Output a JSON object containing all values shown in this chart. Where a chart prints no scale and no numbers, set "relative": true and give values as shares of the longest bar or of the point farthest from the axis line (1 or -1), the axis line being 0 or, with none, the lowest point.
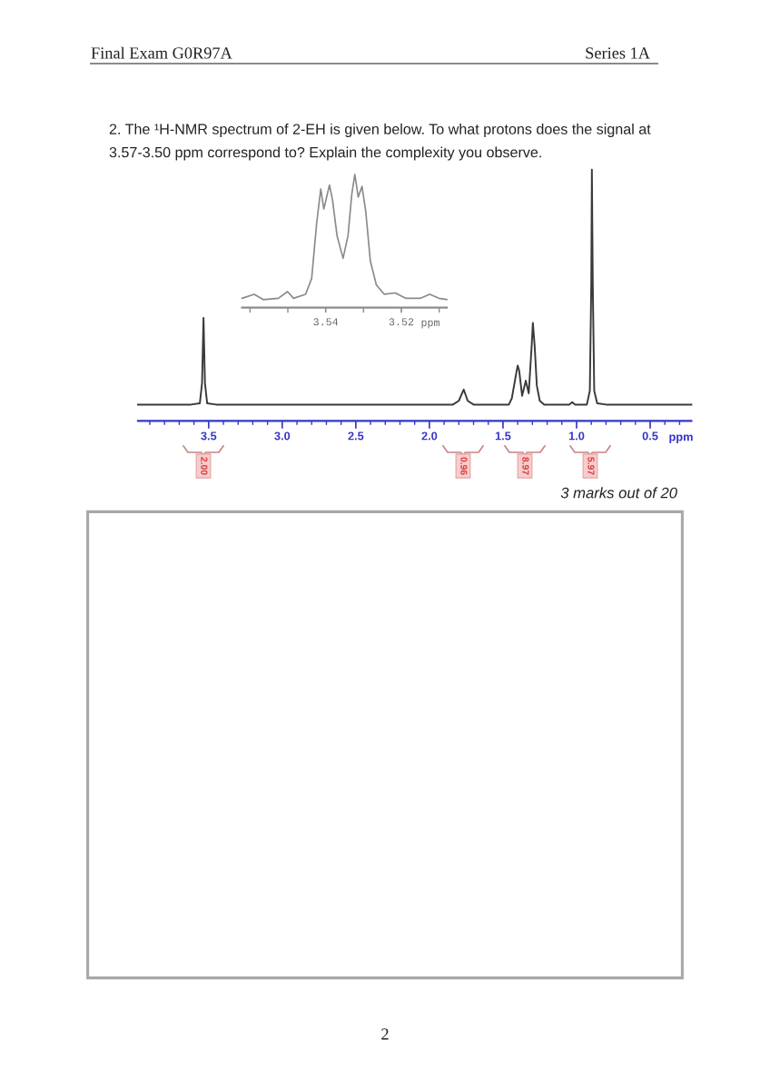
{
  "chart_data": [
    {
      "type": "line",
      "title": "2. The ¹H-NMR spectrum of 2-EH is given below. To what protons does the signal at\n3.57-3.50 ppm correspond to? Explain the complexity you observe.",
      "xlabel": "ppm",
      "relative": true,
      "xlim": [
        3.98,
        0.22
      ],
      "xticks": [
        {
          "value": 3.9,
          "label": null
        },
        {
          "value": 3.8,
          "label": null
        },
        {
          "value": 3.7,
          "label": null
        },
        {
          "value": 3.6,
          "label": null
        },
        3.5,
        {
          "value": 3.4,
          "label": null
        },
        {
          "value": 3.3,
          "label": null
        },
        {
          "value": 3.2,
          "label": null
        },
        {
          "value": 3.1,
          "label": null
        },
        {
          "value": 3,
          "label": "3.0"
        },
        {
          "value": 2.9,
          "label": null
        },
        {
          "value": 2.8,
          "label": null
        },
        {
          "value": 2.7,
          "label": null
        },
        {
          "value": 2.6,
          "label": null
        },
        2.5,
        {
          "value": 2.4,
          "label": null
        },
        {
          "value": 2.3,
          "label": null
        },
        {
          "value": 2.2,
          "label": null
        },
        {
          "value": 2.1,
          "label": null
        },
        {
          "value": 2,
          "label": "2.0"
        },
        {
          "value": 1.9,
          "label": null
        },
        {
          "value": 1.8,
          "label": null
        },
        {
          "value": 1.7,
          "label": null
        },
        {
          "value": 1.6,
          "label": null
        },
        1.5,
        {
          "value": 1.4,
          "label": null
        },
        {
          "value": 1.3,
          "label": null
        },
        {
          "value": 1.2,
          "label": null
        },
        {
          "value": 1.1,
          "label": null
        },
        {
          "value": 1,
          "label": "1.0"
        },
        {
          "value": 0.9,
          "label": null
        },
        {
          "value": 0.8,
          "label": null
        },
        {
          "value": 0.7,
          "label": null
        },
        {
          "value": 0.6,
          "label": null
        },
        0.5,
        {
          "value": 0.4,
          "label": null
        },
        {
          "value": 0.3,
          "label": null
        }
      ],
      "series": [
        {
          "color": "#3a3a3a",
          "x": [
            3.98,
            3.62,
            3.56,
            3.545,
            3.535,
            3.525,
            3.51,
            3.45,
            1.84,
            1.8,
            1.767,
            1.74,
            1.7,
            1.46,
            1.44,
            1.41,
            1.4,
            1.39,
            1.37,
            1.345,
            1.325,
            1.305,
            1.297,
            1.285,
            1.27,
            1.25,
            1.22,
            1.05,
            1.03,
            1.01,
            0.93,
            0.91,
            0.9,
            0.896,
            0.89,
            0.88,
            0.86,
            0.8,
            0.22
          ],
          "values": [
            0.065,
            0.065,
            0.07,
            0.15,
            0.41,
            0.15,
            0.07,
            0.065,
            0.065,
            0.08,
            0.125,
            0.08,
            0.065,
            0.065,
            0.09,
            0.19,
            0.22,
            0.2,
            0.1,
            0.16,
            0.11,
            0.3,
            0.39,
            0.3,
            0.14,
            0.08,
            0.065,
            0.065,
            0.075,
            0.065,
            0.065,
            0.12,
            0.55,
            1.0,
            0.55,
            0.12,
            0.07,
            0.065,
            0.065
          ]
        }
      ],
      "annotations": [
        "Final Exam G0R97A",
        "Series 1A",
        "3 marks out of 20",
        "2",
        "2.00",
        "0.96",
        "8.97",
        "5.97"
      ]
    },
    {
      "type": "line",
      "xlabel": "ppm",
      "relative": true,
      "xlim": [
        3.5621,
        3.508
      ],
      "xticks": [
        {
          "value": 3.56,
          "label": null
        },
        {
          "value": 3.55,
          "label": null
        },
        3.54,
        {
          "value": 3.53,
          "label": null
        },
        3.52,
        {
          "value": 3.51,
          "label": null
        }
      ],
      "series": [
        {
          "color": "#8a8a8a",
          "x": [
            3.5621,
            3.5589,
            3.5565,
            3.5525,
            3.5501,
            3.5485,
            3.5453,
            3.5437,
            3.5424,
            3.5413,
            3.5405,
            3.539,
            3.5382,
            3.537,
            3.5354,
            3.5341,
            3.5331,
            3.5323,
            3.5314,
            3.5304,
            3.5294,
            3.5282,
            3.5266,
            3.5245,
            3.5216,
            3.5189,
            3.5149,
            3.5125,
            3.5101,
            3.508
          ],
          "values": [
            0.07,
            0.1,
            0.06,
            0.07,
            0.12,
            0.07,
            0.1,
            0.22,
            0.63,
            0.89,
            0.74,
            0.92,
            0.81,
            0.54,
            0.37,
            0.54,
            0.85,
            1.0,
            0.83,
            0.91,
            0.72,
            0.35,
            0.17,
            0.1,
            0.11,
            0.07,
            0.07,
            0.1,
            0.07,
            0.06
          ]
        }
      ]
    }
  ]
}
